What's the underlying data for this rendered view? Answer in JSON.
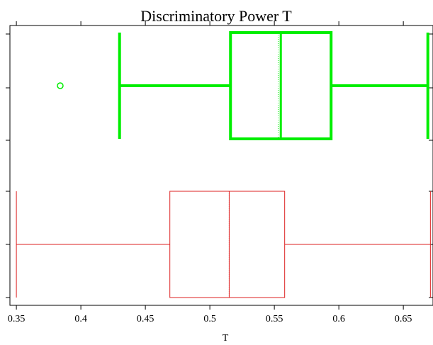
{
  "chart_data": {
    "type": "boxplot",
    "title": "Discriminatory Power T",
    "xlabel": "T",
    "ylabel": "",
    "xlim": [
      0.345,
      0.673
    ],
    "x_ticks": [
      0.35,
      0.4,
      0.45,
      0.5,
      0.55,
      0.6,
      0.65
    ],
    "x_tick_labels": [
      "0.35",
      "0.4",
      "0.45",
      "0.5",
      "0.55",
      "0.6",
      "0.65"
    ],
    "orientation": "horizontal",
    "grid": false,
    "legend": "none",
    "series": [
      {
        "color": "#00ee00",
        "position": "top",
        "whisker_low": 0.43,
        "q1": 0.516,
        "median": 0.555,
        "mean": 0.553,
        "q3": 0.594,
        "whisker_high": 0.669,
        "outliers": [
          0.384
        ],
        "line_style": "thick"
      },
      {
        "color": "#dd2222",
        "position": "bottom",
        "whisker_low": 0.35,
        "q1": 0.469,
        "median": 0.515,
        "mean": 0.515,
        "q3": 0.558,
        "whisker_high": 0.671,
        "outliers": [],
        "line_style": "thin"
      }
    ]
  }
}
